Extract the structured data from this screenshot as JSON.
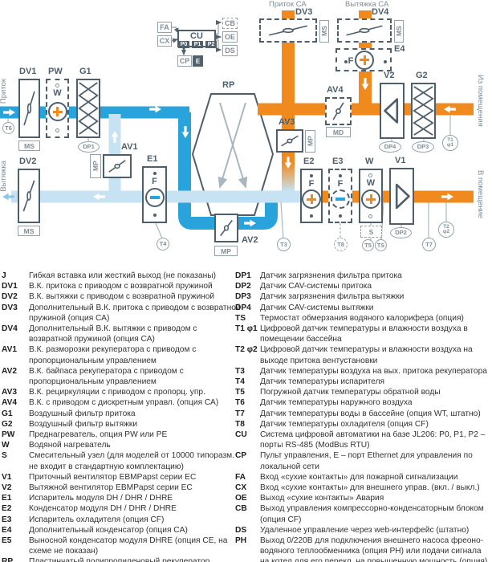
{
  "diagram": {
    "flows": {
      "supply_in": "Приток",
      "exhaust_out": "Вытяжка",
      "supply_ca": "Приток СА",
      "exhaust_ca": "Вытяжка СА",
      "from_room": "Из помещения",
      "to_room": "В помещение"
    },
    "control": {
      "fa": "FA",
      "cx": "CX",
      "cu": "CU",
      "p0": "P0",
      "p1": "P1",
      "p2": "P2",
      "cp": "CP",
      "e": "E",
      "cb": "CB",
      "oe": "OE",
      "ds": "DS"
    },
    "components": {
      "dv1": "DV1",
      "dv2": "DV2",
      "dv3": "DV3",
      "dv4": "DV4",
      "av1": "AV1",
      "av2": "AV2",
      "av3": "AV3",
      "av4": "AV4",
      "pw": "PW",
      "g1": "G1",
      "g2": "G2",
      "rp": "RP",
      "e1": "E1",
      "e2": "E2",
      "e3": "E3",
      "e4": "E4",
      "w": "W",
      "v1": "V1",
      "v2": "V2"
    },
    "tags": {
      "ms": "MS",
      "mp": "MP",
      "md": "MD"
    },
    "letters": {
      "f": "F",
      "w": "W"
    },
    "sensors": {
      "t1": "T1",
      "f1": "φ1",
      "t2": "T2",
      "f2": "φ2",
      "t3": "T3",
      "t4": "T4",
      "t5": "T5",
      "t6": "T6",
      "t7": "T7",
      "t8": "T8",
      "ts": "TS",
      "s": "S",
      "dp1": "DP1",
      "dp2": "DP2",
      "dp3": "DP3",
      "dp4": "DP4"
    }
  },
  "colors": {
    "orange": "#F08A1E",
    "blue": "#29A3DC",
    "pale_blue": "#C6E2F3",
    "slate": "#4D5F6C"
  },
  "legend": {
    "left": [
      {
        "key": "J",
        "desc": "Гибкая вставка или жесткий выход (не показаны)"
      },
      {
        "key": "DV1",
        "desc": "В.К. притока с приводом с возвратной пружиной"
      },
      {
        "key": "DV2",
        "desc": "В.К. вытяжки с приводом с возвратной пружиной"
      },
      {
        "key": "DV3",
        "desc": "Дополнительный В.К. притока с приводом с возвратной пружиной (опция СА)"
      },
      {
        "key": "DV4",
        "desc": "Дополнительный В.К. вытяжки с приводом с возвратной пружиной (опция СА)"
      },
      {
        "key": "AV1",
        "desc": "В.К. разморозки рекуператора с приводом с пропорциональным управлением"
      },
      {
        "key": "AV2",
        "desc": "В.К. байпаса рекуператора с приводом с пропорциональным управлением"
      },
      {
        "key": "AV3",
        "desc": "В.К. рециркуляции с приводом с пропорц. упр."
      },
      {
        "key": "AV4",
        "desc": "В.К. с приводом с дискретным управл. (опция СА)"
      },
      {
        "key": "G1",
        "desc": "Воздушный фильтр притока"
      },
      {
        "key": "G2",
        "desc": "Воздушный фильтр вытяжки"
      },
      {
        "key": "PW",
        "desc": "Преднагреватель, опция PW или PE"
      },
      {
        "key": "W",
        "desc": "Водяной нагреватель"
      },
      {
        "key": "S",
        "desc": "Смесительный узел (для моделей от 10000 типоразм. не входит в стандартную комплектацию)"
      },
      {
        "key": "V1",
        "desc": "Приточный вентилятор EBMPapst серии EC"
      },
      {
        "key": "V2",
        "desc": "Вытяжной вентилятор EBMPapst серии EC"
      },
      {
        "key": "E1",
        "desc": "Испаритель модуля DH / DHR / DHRE"
      },
      {
        "key": "E2",
        "desc": "Конденсатор модуля DH / DHR / DHRE"
      },
      {
        "key": "E3",
        "desc": "Испаритель охладителя (опция CF)"
      },
      {
        "key": "E4",
        "desc": "Дополнительный конденсатор (опция CA)"
      },
      {
        "key": "E5",
        "desc": "Выносной конденсатор модуля DHRE (опция СЕ, на схеме не показан)"
      },
      {
        "key": "RP",
        "desc": "Пластинчатый полипропиленовый рекуператор"
      }
    ],
    "right": [
      {
        "key": "DP1",
        "desc": "Датчик загрязнения фильтра притока"
      },
      {
        "key": "DP2",
        "desc": "Датчик CAV-системы притока"
      },
      {
        "key": "DP3",
        "desc": "Датчик загрязнения фильтра вытяжки"
      },
      {
        "key": "DP4",
        "desc": "Датчик CAV-системы вытяжки"
      },
      {
        "key": "TS",
        "desc": "Термостат обмерзания водяного калорифера (опция)"
      },
      {
        "key": "T1 φ1",
        "desc": "Цифровой датчик температуры и влажности воздуха в помещении бассейна"
      },
      {
        "key": "T2 φ2",
        "desc": "Цифровой датчик температуры и влажности воздуха на выходе притока вентустановки"
      },
      {
        "key": "T3",
        "desc": "Датчик температуры воздуха на вых. притока рекуператора"
      },
      {
        "key": "T4",
        "desc": "Датчик температуры испарителя"
      },
      {
        "key": "T5",
        "desc": "Погружной датчик температуры обратной воды"
      },
      {
        "key": "T6",
        "desc": "Датчик температуры наружного воздуха"
      },
      {
        "key": "T7",
        "desc": "Датчик температуры воды в бассейне (опция WT, штатно)"
      },
      {
        "key": "T8",
        "desc": "Датчик температуры охладителя (опция CF)"
      },
      {
        "key": "CU",
        "desc": "Система цифровой автоматики на базе JL206: P0, P1, P2 – порты RS-485 (ModBus RTU)"
      },
      {
        "key": "CP",
        "desc": "Пульт управления, Е – порт Ethernet для управления по локальной сети"
      },
      {
        "key": "FA",
        "desc": "Вход «сухие контакты» для пожарной сигнализации"
      },
      {
        "key": "CX",
        "desc": "Вход  «сухие контакты» для внешнего управ. (вкл. / выкл.)"
      },
      {
        "key": "OE",
        "desc": "Выход «сухие контакты» Авария"
      },
      {
        "key": "CB",
        "desc": "Выход управления компрессорно-конденсаторным блоком (опция CF)"
      },
      {
        "key": "DS",
        "desc": "Удаленное управление через web-интерфейс (штатно)"
      },
      {
        "key": "PH",
        "desc": "Выход 0/220В для подключения внешнего насоса фреоно-водяного теплообменника (опция PH) или подачи сигнала на котел для его перекл. на повышенную мощность (опция)"
      }
    ]
  }
}
